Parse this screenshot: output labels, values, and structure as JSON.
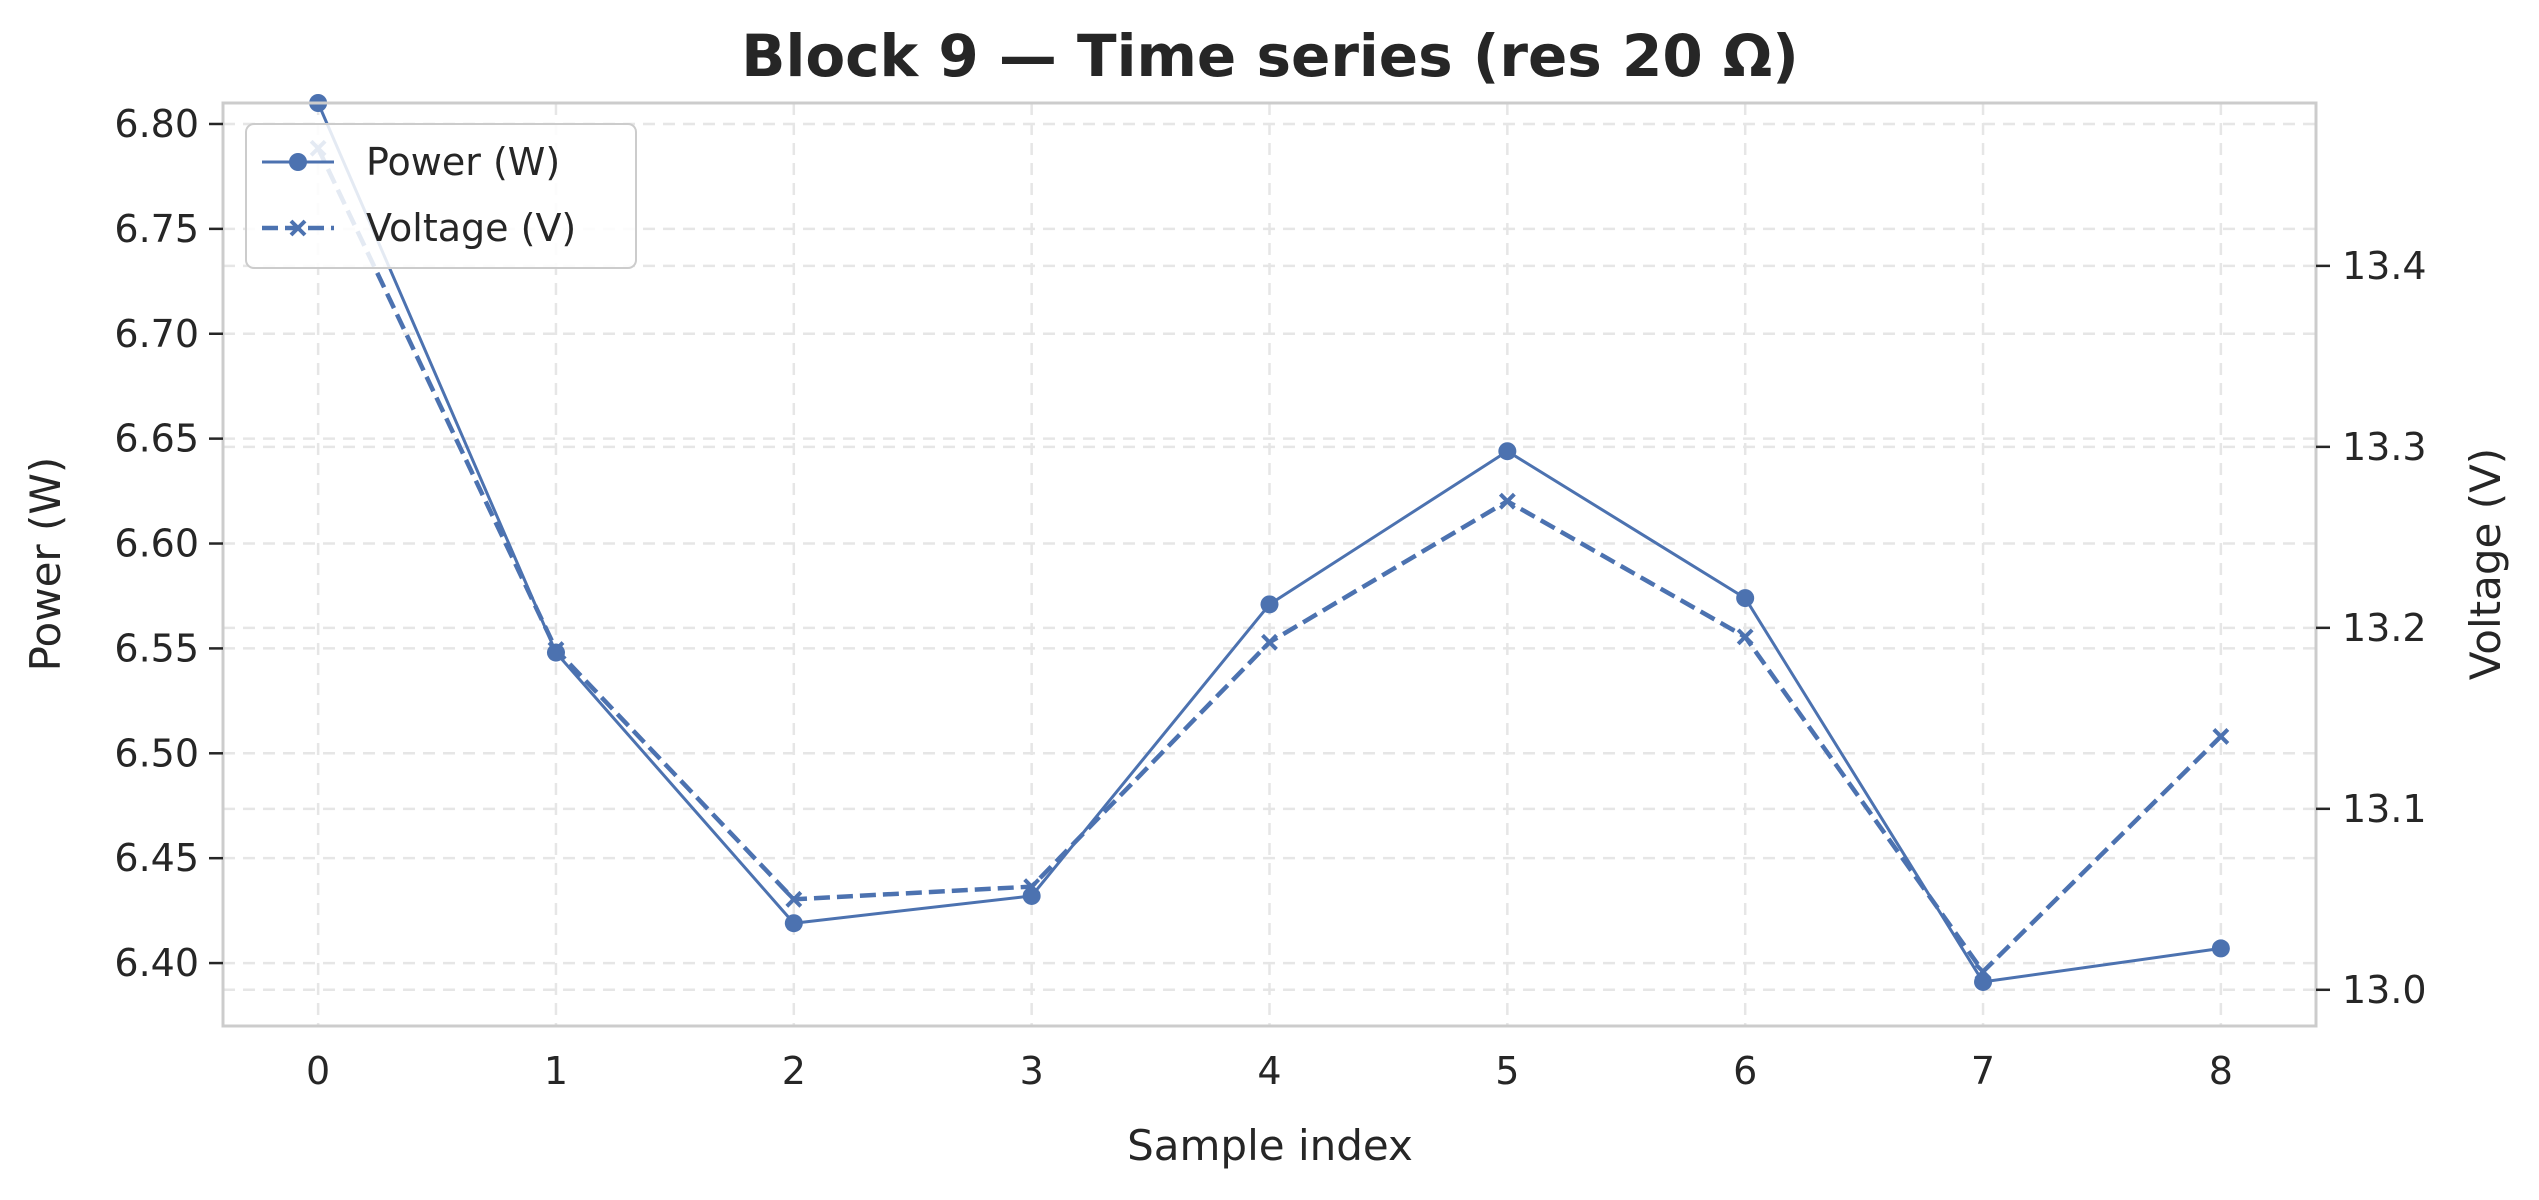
{
  "chart_data": {
    "type": "line",
    "title": "Block 9 — Time series (res 20 Ω)",
    "xlabel": "Sample index",
    "ylabel_left": "Power (W)",
    "ylabel_right": "Voltage (V)",
    "x": [
      0,
      1,
      2,
      3,
      4,
      5,
      6,
      7,
      8
    ],
    "x_ticks": [
      "0",
      "1",
      "2",
      "3",
      "4",
      "5",
      "6",
      "7",
      "8"
    ],
    "xlim": [
      -0.4,
      8.4
    ],
    "ylim_left": [
      6.37,
      6.81
    ],
    "y_ticks_left": [
      "6.40",
      "6.45",
      "6.50",
      "6.55",
      "6.60",
      "6.65",
      "6.70",
      "6.75",
      "6.80"
    ],
    "ylim_right": [
      12.98,
      13.49
    ],
    "y_ticks_right": [
      "13.0",
      "13.1",
      "13.2",
      "13.3",
      "13.4"
    ],
    "grid": true,
    "legend_position": "top-left",
    "series": [
      {
        "name": "Power (W)",
        "axis": "left",
        "marker": "circle",
        "linestyle": "solid",
        "color": "#4c72b0",
        "values": [
          6.81,
          6.548,
          6.419,
          6.432,
          6.571,
          6.644,
          6.574,
          6.391,
          6.407
        ]
      },
      {
        "name": "Voltage (V)",
        "axis": "right",
        "marker": "x",
        "linestyle": "dashed",
        "color": "#4c72b0",
        "values": [
          13.465,
          13.188,
          13.05,
          13.057,
          13.192,
          13.27,
          13.195,
          13.01,
          13.14
        ]
      }
    ]
  }
}
